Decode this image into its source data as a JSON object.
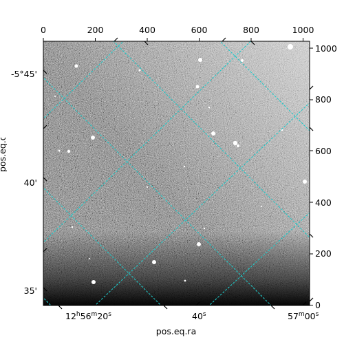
{
  "image": {
    "description_kind": "astronomical-fits-image",
    "colormap": "grayscale",
    "overlay_color": "#20c8c8"
  },
  "axes": {
    "xlabel": "pos.eq.ra",
    "ylabel_visible_fragment": "pos.eq.dec",
    "pixel_x_ticks": [
      "0",
      "200",
      "400",
      "600",
      "800",
      "1000"
    ],
    "pixel_y_ticks": [
      "0",
      "200",
      "400",
      "600",
      "800",
      "1000"
    ],
    "ra_ticks": [
      {
        "label": "12h56m20s",
        "h": "12",
        "m": "56",
        "s": "20"
      },
      {
        "label": "40s",
        "s": "40"
      },
      {
        "label": "57m00s",
        "m": "57",
        "s": "00"
      }
    ],
    "dec_ticks": [
      "-5°45'",
      "40'",
      "35'"
    ]
  }
}
